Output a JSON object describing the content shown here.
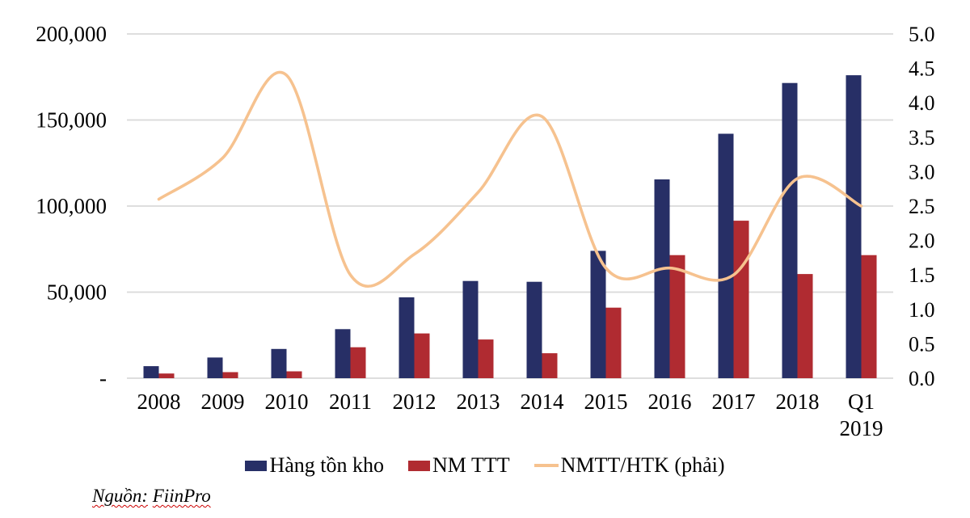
{
  "chart_data": {
    "type": "bar",
    "subtype": "combo-bar-line",
    "title": "",
    "categories": [
      "2008",
      "2009",
      "2010",
      "2011",
      "2012",
      "2013",
      "2014",
      "2015",
      "2016",
      "2017",
      "2018",
      "Q1 2019"
    ],
    "series": [
      {
        "name": "Hàng tồn kho",
        "type": "bar",
        "axis": "left",
        "color": "#272f66",
        "values": [
          7000,
          12000,
          17000,
          28500,
          47000,
          56500,
          56000,
          74000,
          115500,
          142000,
          171500,
          176000
        ]
      },
      {
        "name": "NM TTT",
        "type": "bar",
        "axis": "left",
        "color": "#b02b31",
        "values": [
          2700,
          3500,
          4000,
          18000,
          26000,
          22500,
          14500,
          41000,
          71500,
          91500,
          60500,
          71500
        ]
      },
      {
        "name": "NMTT/HTK (phải)",
        "type": "line",
        "axis": "right",
        "color": "#f6c28f",
        "values": [
          2.6,
          3.2,
          4.4,
          1.5,
          1.8,
          2.7,
          3.8,
          1.6,
          1.6,
          1.5,
          2.9,
          2.5
        ]
      }
    ],
    "left_axis": {
      "min": 0,
      "max": 200000,
      "tick_values": [
        0,
        50000,
        100000,
        150000,
        200000
      ],
      "tick_labels": [
        "-",
        "50,000",
        "100,000",
        "150,000",
        "200,000"
      ]
    },
    "right_axis": {
      "min": 0,
      "max": 5,
      "tick_values": [
        0,
        0.5,
        1,
        1.5,
        2,
        2.5,
        3,
        3.5,
        4,
        4.5,
        5
      ],
      "tick_labels": [
        "0.0",
        "0.5",
        "1.0",
        "1.5",
        "2.0",
        "2.5",
        "3.0",
        "3.5",
        "4.0",
        "4.5",
        "5.0"
      ]
    },
    "grid": true,
    "gridline_color": "#d9d9d9",
    "legend_position": "bottom"
  },
  "legend": {
    "items": [
      {
        "label": "Hàng tồn kho",
        "color": "#272f66",
        "shape": "rect"
      },
      {
        "label": "NM TTT",
        "color": "#b02b31",
        "shape": "rect"
      },
      {
        "label": "NMTT/HTK (phải)",
        "color": "#f6c28f",
        "shape": "line"
      }
    ]
  },
  "source": {
    "prefix": "Nguồn:",
    "name": "FiinPro"
  }
}
